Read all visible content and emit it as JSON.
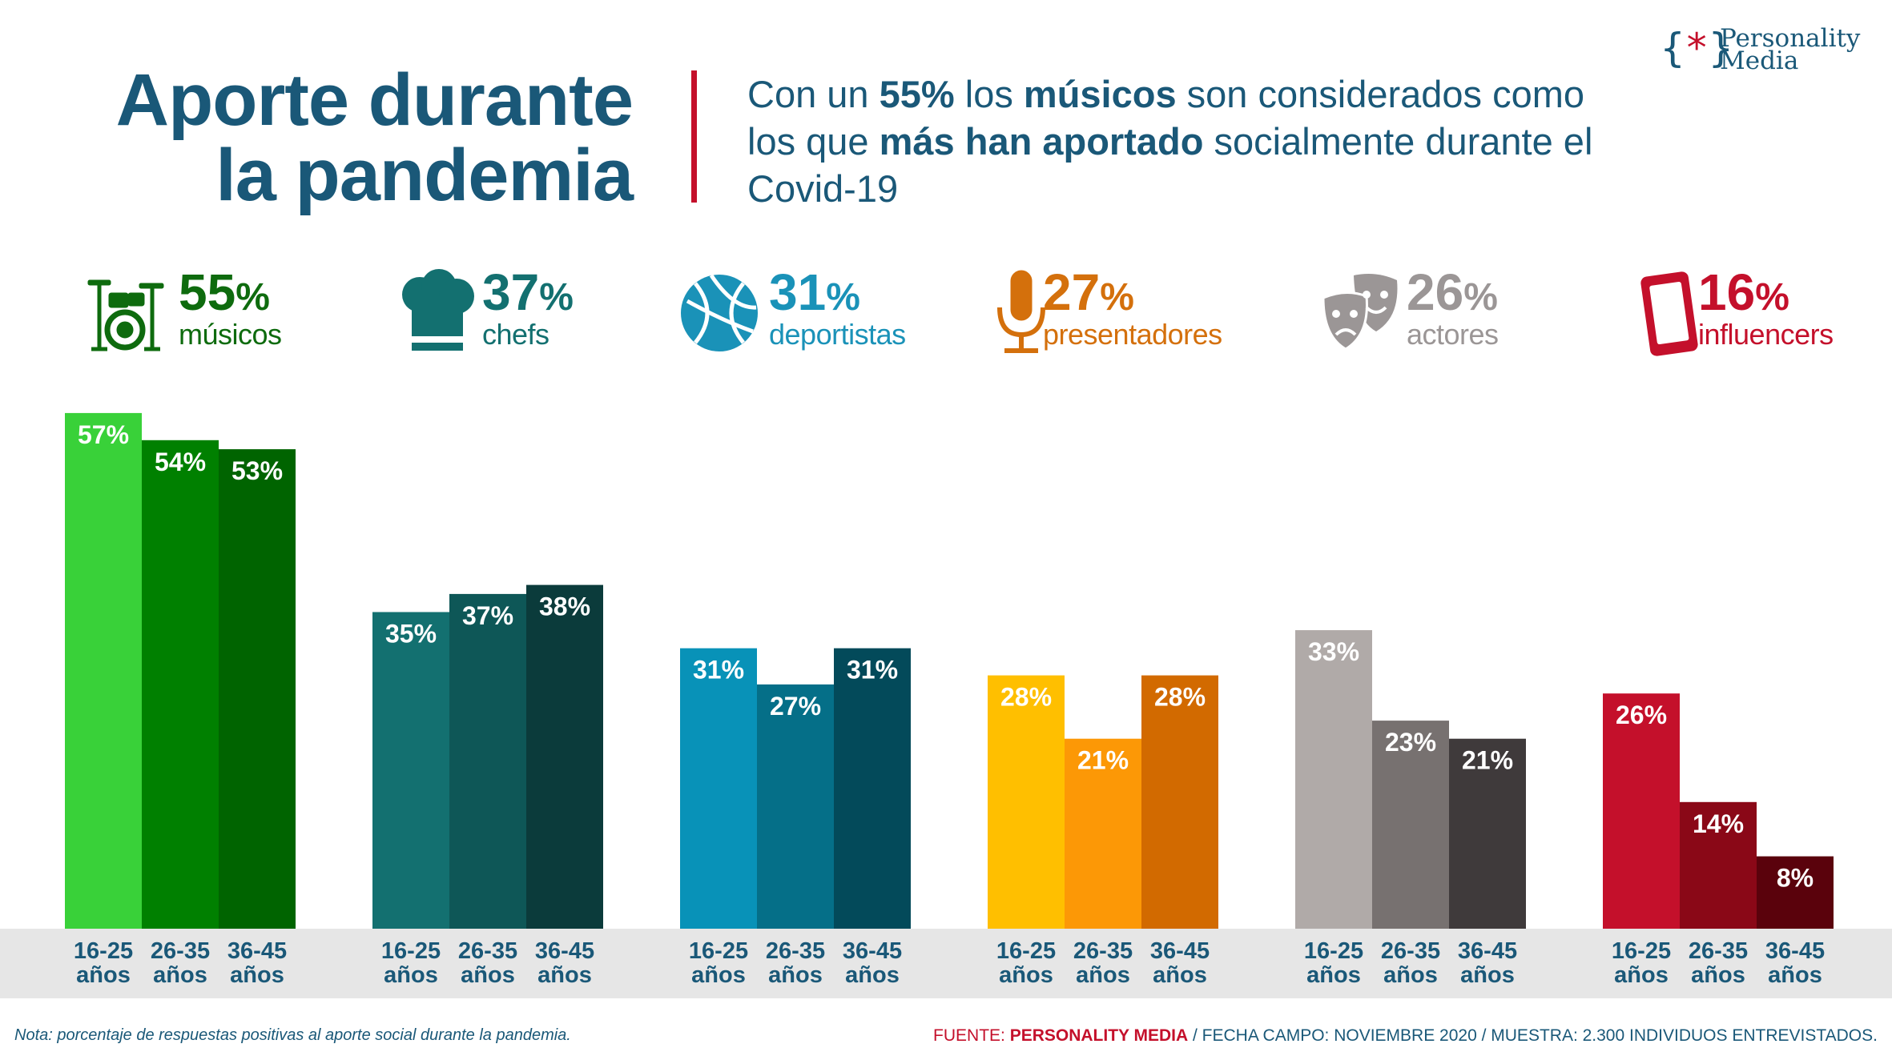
{
  "header": {
    "title_line1": "Aporte durante",
    "title_line2": "la pandemia",
    "subtitle_parts": [
      "Con un ",
      "55%",
      " los ",
      "músicos",
      " son considerados como los que ",
      "más han aportado",
      " socialmente durante el Covid-19"
    ]
  },
  "logo": {
    "symbol_open": "{",
    "symbol_star": "*",
    "symbol_close": "}",
    "line1": "Personality",
    "line2": "Media"
  },
  "categories": [
    {
      "percent": "55",
      "percent_sign": "%",
      "label": "músicos",
      "color": "#0e6b0e",
      "icon": "drum-kit-icon"
    },
    {
      "percent": "37",
      "percent_sign": "%",
      "label": "chefs",
      "color": "#137070",
      "icon": "chef-hat-icon"
    },
    {
      "percent": "31",
      "percent_sign": "%",
      "label": "deportistas",
      "color": "#1a92b8",
      "icon": "basketball-icon"
    },
    {
      "percent": "27",
      "percent_sign": "%",
      "label": "presentadores",
      "color": "#d4700c",
      "icon": "microphone-icon"
    },
    {
      "percent": "26",
      "percent_sign": "%",
      "label": "actores",
      "color": "#9b9696",
      "icon": "theater-masks-icon"
    },
    {
      "percent": "16",
      "percent_sign": "%",
      "label": "influencers",
      "color": "#c4102b",
      "icon": "smartphone-icon"
    }
  ],
  "chart_data": {
    "type": "bar",
    "title": "",
    "xlabel": "",
    "ylabel": "",
    "ylim": [
      0,
      60
    ],
    "groups": [
      {
        "name": "músicos",
        "categories": [
          "16-25 años",
          "26-35 años",
          "36-45 años"
        ],
        "values": [
          57,
          54,
          53
        ],
        "labels": [
          "57%",
          "54%",
          "53%"
        ],
        "colors": [
          "#39d139",
          "#008000",
          "#006400"
        ]
      },
      {
        "name": "chefs",
        "categories": [
          "16-25 años",
          "26-35 años",
          "36-45 años"
        ],
        "values": [
          35,
          37,
          38
        ],
        "labels": [
          "35%",
          "37%",
          "38%"
        ],
        "colors": [
          "#137070",
          "#0e5757",
          "#0b3b3b"
        ]
      },
      {
        "name": "deportistas",
        "categories": [
          "16-25 años",
          "26-35 años",
          "36-45 años"
        ],
        "values": [
          31,
          27,
          31
        ],
        "labels": [
          "31%",
          "27%",
          "31%"
        ],
        "colors": [
          "#0892b8",
          "#056f88",
          "#034a5a"
        ]
      },
      {
        "name": "presentadores",
        "categories": [
          "16-25 años",
          "26-35 años",
          "36-45 años"
        ],
        "values": [
          28,
          21,
          28
        ],
        "labels": [
          "28%",
          "21%",
          "28%"
        ],
        "colors": [
          "#ffbf00",
          "#fc9806",
          "#d26a00"
        ]
      },
      {
        "name": "actores",
        "categories": [
          "16-25 años",
          "26-35 años",
          "36-45 años"
        ],
        "values": [
          33,
          23,
          21
        ],
        "labels": [
          "33%",
          "23%",
          "21%"
        ],
        "colors": [
          "#b0aaa8",
          "#777170",
          "#3f3a3b"
        ]
      },
      {
        "name": "influencers",
        "categories": [
          "16-25 años",
          "26-35 años",
          "36-45 años"
        ],
        "values": [
          26,
          14,
          8
        ],
        "labels": [
          "26%",
          "14%",
          "8%"
        ],
        "colors": [
          "#c4102b",
          "#8a0817",
          "#5a020c"
        ]
      }
    ],
    "tick_label_color": "#1a5878"
  },
  "footer": {
    "note": "Nota: porcentaje de respuestas positivas al aporte social durante la pandemia.",
    "source_prefix": "FUENTE: ",
    "source_name": "PERSONALITY MEDIA",
    "source_rest": " / FECHA CAMPO: NOVIEMBRE 2020 / MUESTRA: 2.300 INDIVIDUOS ENTREVISTADOS."
  }
}
